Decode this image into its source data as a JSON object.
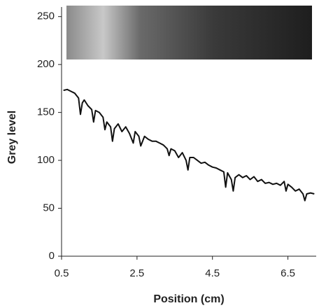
{
  "chart_data": {
    "type": "line",
    "x_label": "Position (cm)",
    "y_label": "Grey level",
    "x": [
      0.55,
      0.65,
      0.75,
      0.85,
      0.95,
      1.0,
      1.05,
      1.1,
      1.2,
      1.3,
      1.35,
      1.4,
      1.5,
      1.6,
      1.65,
      1.7,
      1.8,
      1.85,
      1.9,
      2.0,
      2.1,
      2.2,
      2.3,
      2.4,
      2.45,
      2.55,
      2.6,
      2.7,
      2.8,
      2.9,
      3.0,
      3.1,
      3.2,
      3.3,
      3.35,
      3.4,
      3.5,
      3.6,
      3.7,
      3.8,
      3.85,
      3.9,
      4.0,
      4.1,
      4.2,
      4.3,
      4.4,
      4.5,
      4.6,
      4.7,
      4.8,
      4.85,
      4.9,
      5.0,
      5.05,
      5.1,
      5.2,
      5.3,
      5.4,
      5.5,
      5.6,
      5.7,
      5.8,
      5.9,
      6.0,
      6.1,
      6.2,
      6.3,
      6.4,
      6.45,
      6.5,
      6.6,
      6.7,
      6.8,
      6.9,
      6.95,
      7.0,
      7.1,
      7.2
    ],
    "series": [
      {
        "color": "#111111",
        "values": [
          173,
          174,
          172,
          170,
          165,
          148,
          160,
          163,
          157,
          153,
          140,
          152,
          150,
          145,
          132,
          140,
          135,
          120,
          133,
          138,
          130,
          135,
          128,
          118,
          130,
          125,
          115,
          125,
          122,
          120,
          120,
          118,
          116,
          112,
          105,
          112,
          110,
          103,
          108,
          100,
          90,
          103,
          103,
          100,
          97,
          98,
          95,
          93,
          92,
          90,
          88,
          72,
          87,
          80,
          68,
          82,
          85,
          82,
          84,
          80,
          83,
          78,
          80,
          76,
          77,
          75,
          76,
          74,
          78,
          68,
          75,
          72,
          68,
          70,
          65,
          58,
          65,
          66,
          65
        ]
      }
    ],
    "xlim": [
      0.5,
      7.25
    ],
    "xticks": [
      0.5,
      2.5,
      4.5,
      6.5
    ],
    "ylim": [
      0,
      260
    ],
    "yticks": [
      0,
      50,
      100,
      150,
      200,
      250
    ]
  }
}
